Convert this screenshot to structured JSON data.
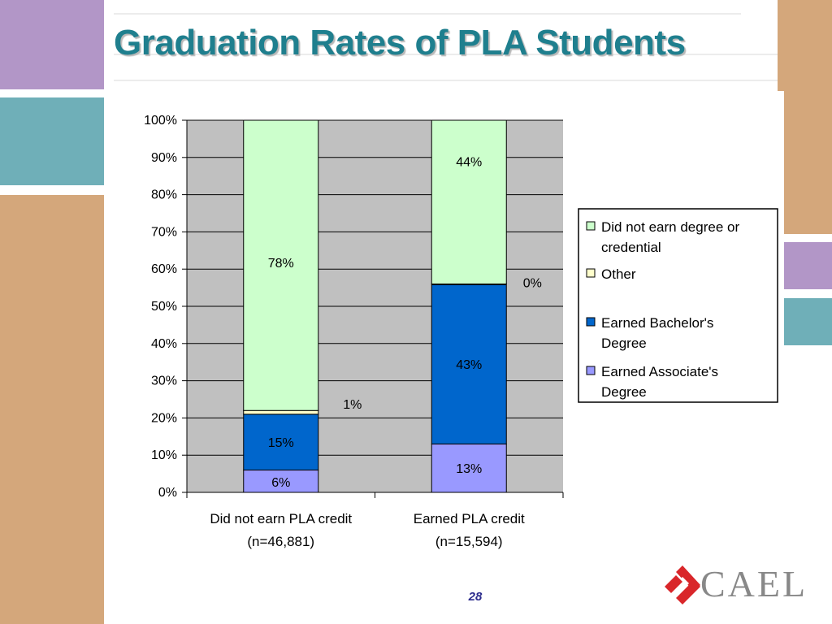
{
  "slide": {
    "title": "Graduation Rates of PLA Students",
    "page_number": "28",
    "logo_text": "CAEL"
  },
  "colors": {
    "title": "#1f7f8e",
    "plot_background": "#c0c0c0",
    "did_not_earn": "#ccffcc",
    "other": "#ffffcc",
    "bachelor": "#0066cc",
    "associate": "#9999ff",
    "deco_tan": "#d4a77b",
    "deco_purple": "#b296c7",
    "deco_teal": "#6fafb8",
    "logo_red": "#d9262a"
  },
  "chart_data": {
    "type": "bar",
    "stacked": true,
    "categories": [
      [
        "Did not earn PLA credit",
        "(n=46,881)"
      ],
      [
        "Earned PLA credit",
        "(n=15,594)"
      ]
    ],
    "series": [
      {
        "name": "Earned Associate's Degree",
        "values": [
          6,
          13
        ],
        "labels": [
          "6%",
          "13%"
        ],
        "color": "#9999ff"
      },
      {
        "name": "Earned Bachelor's Degree",
        "values": [
          15,
          43
        ],
        "labels": [
          "15%",
          "43%"
        ],
        "color": "#0066cc"
      },
      {
        "name": "Other",
        "values": [
          1,
          0
        ],
        "labels": [
          "1%",
          "0%"
        ],
        "color": "#ffffcc"
      },
      {
        "name": "Did not earn degree or credential",
        "values": [
          78,
          44
        ],
        "labels": [
          "78%",
          "44%"
        ],
        "color": "#ccffcc"
      }
    ],
    "legend": {
      "position": "right",
      "entries": [
        {
          "lines": [
            "Did not earn degree or",
            "credential"
          ],
          "color": "#ccffcc"
        },
        {
          "lines": [
            "Other"
          ],
          "color": "#ffffcc"
        },
        {
          "lines": [
            "Earned Bachelor's",
            "Degree"
          ],
          "color": "#0066cc"
        },
        {
          "lines": [
            "Earned Associate's",
            "Degree"
          ],
          "color": "#9999ff"
        }
      ]
    },
    "y_ticks": [
      "0%",
      "10%",
      "20%",
      "30%",
      "40%",
      "50%",
      "60%",
      "70%",
      "80%",
      "90%",
      "100%"
    ],
    "ylim": [
      0,
      100
    ],
    "grid": true
  }
}
